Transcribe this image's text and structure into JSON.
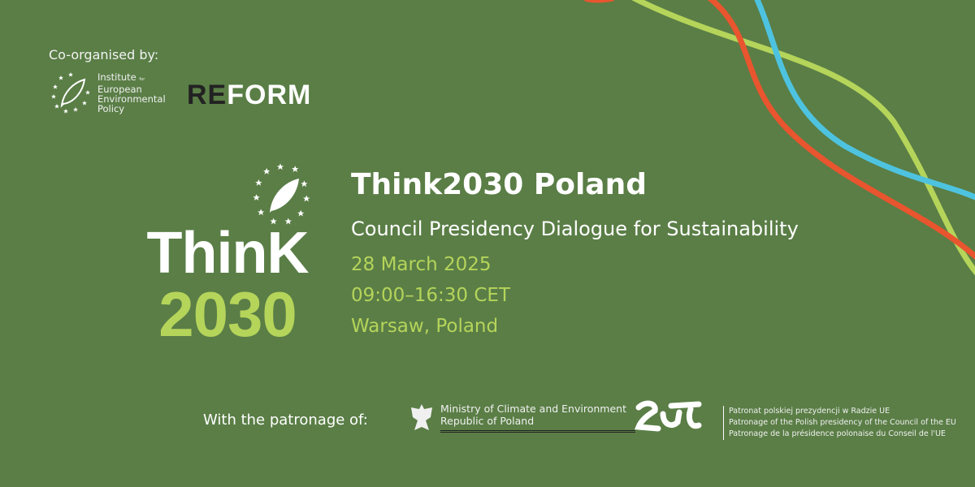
{
  "colors": {
    "background": "#5a7e46",
    "accent_green": "#b5d45a",
    "line_red": "#e8552e",
    "line_blue": "#4ec3e0"
  },
  "co_organised": {
    "label": "Co-organised by:",
    "ieep": [
      "Institute",
      "for",
      "European",
      "Environmental",
      "Policy"
    ],
    "reform": [
      "RE",
      "FORM"
    ]
  },
  "logo": {
    "line1": "ThinK",
    "line2": "2030"
  },
  "event": {
    "title": "Think2030 Poland",
    "subtitle": "Council Presidency Dialogue for Sustainability",
    "date": "28 March 2025",
    "time": "09:00–16:30 CET",
    "location": "Warsaw, Poland"
  },
  "patronage": {
    "label": "With the patronage of:",
    "ministry": [
      "Ministry of Climate and Environment",
      "Republic of Poland"
    ],
    "presidency": [
      "Patronat polskiej prezydencji w Radzie UE",
      "Patronage of the Polish presidency of the Council of the EU",
      "Patronage de la présidence polonaise du Conseil de l'UE"
    ]
  }
}
